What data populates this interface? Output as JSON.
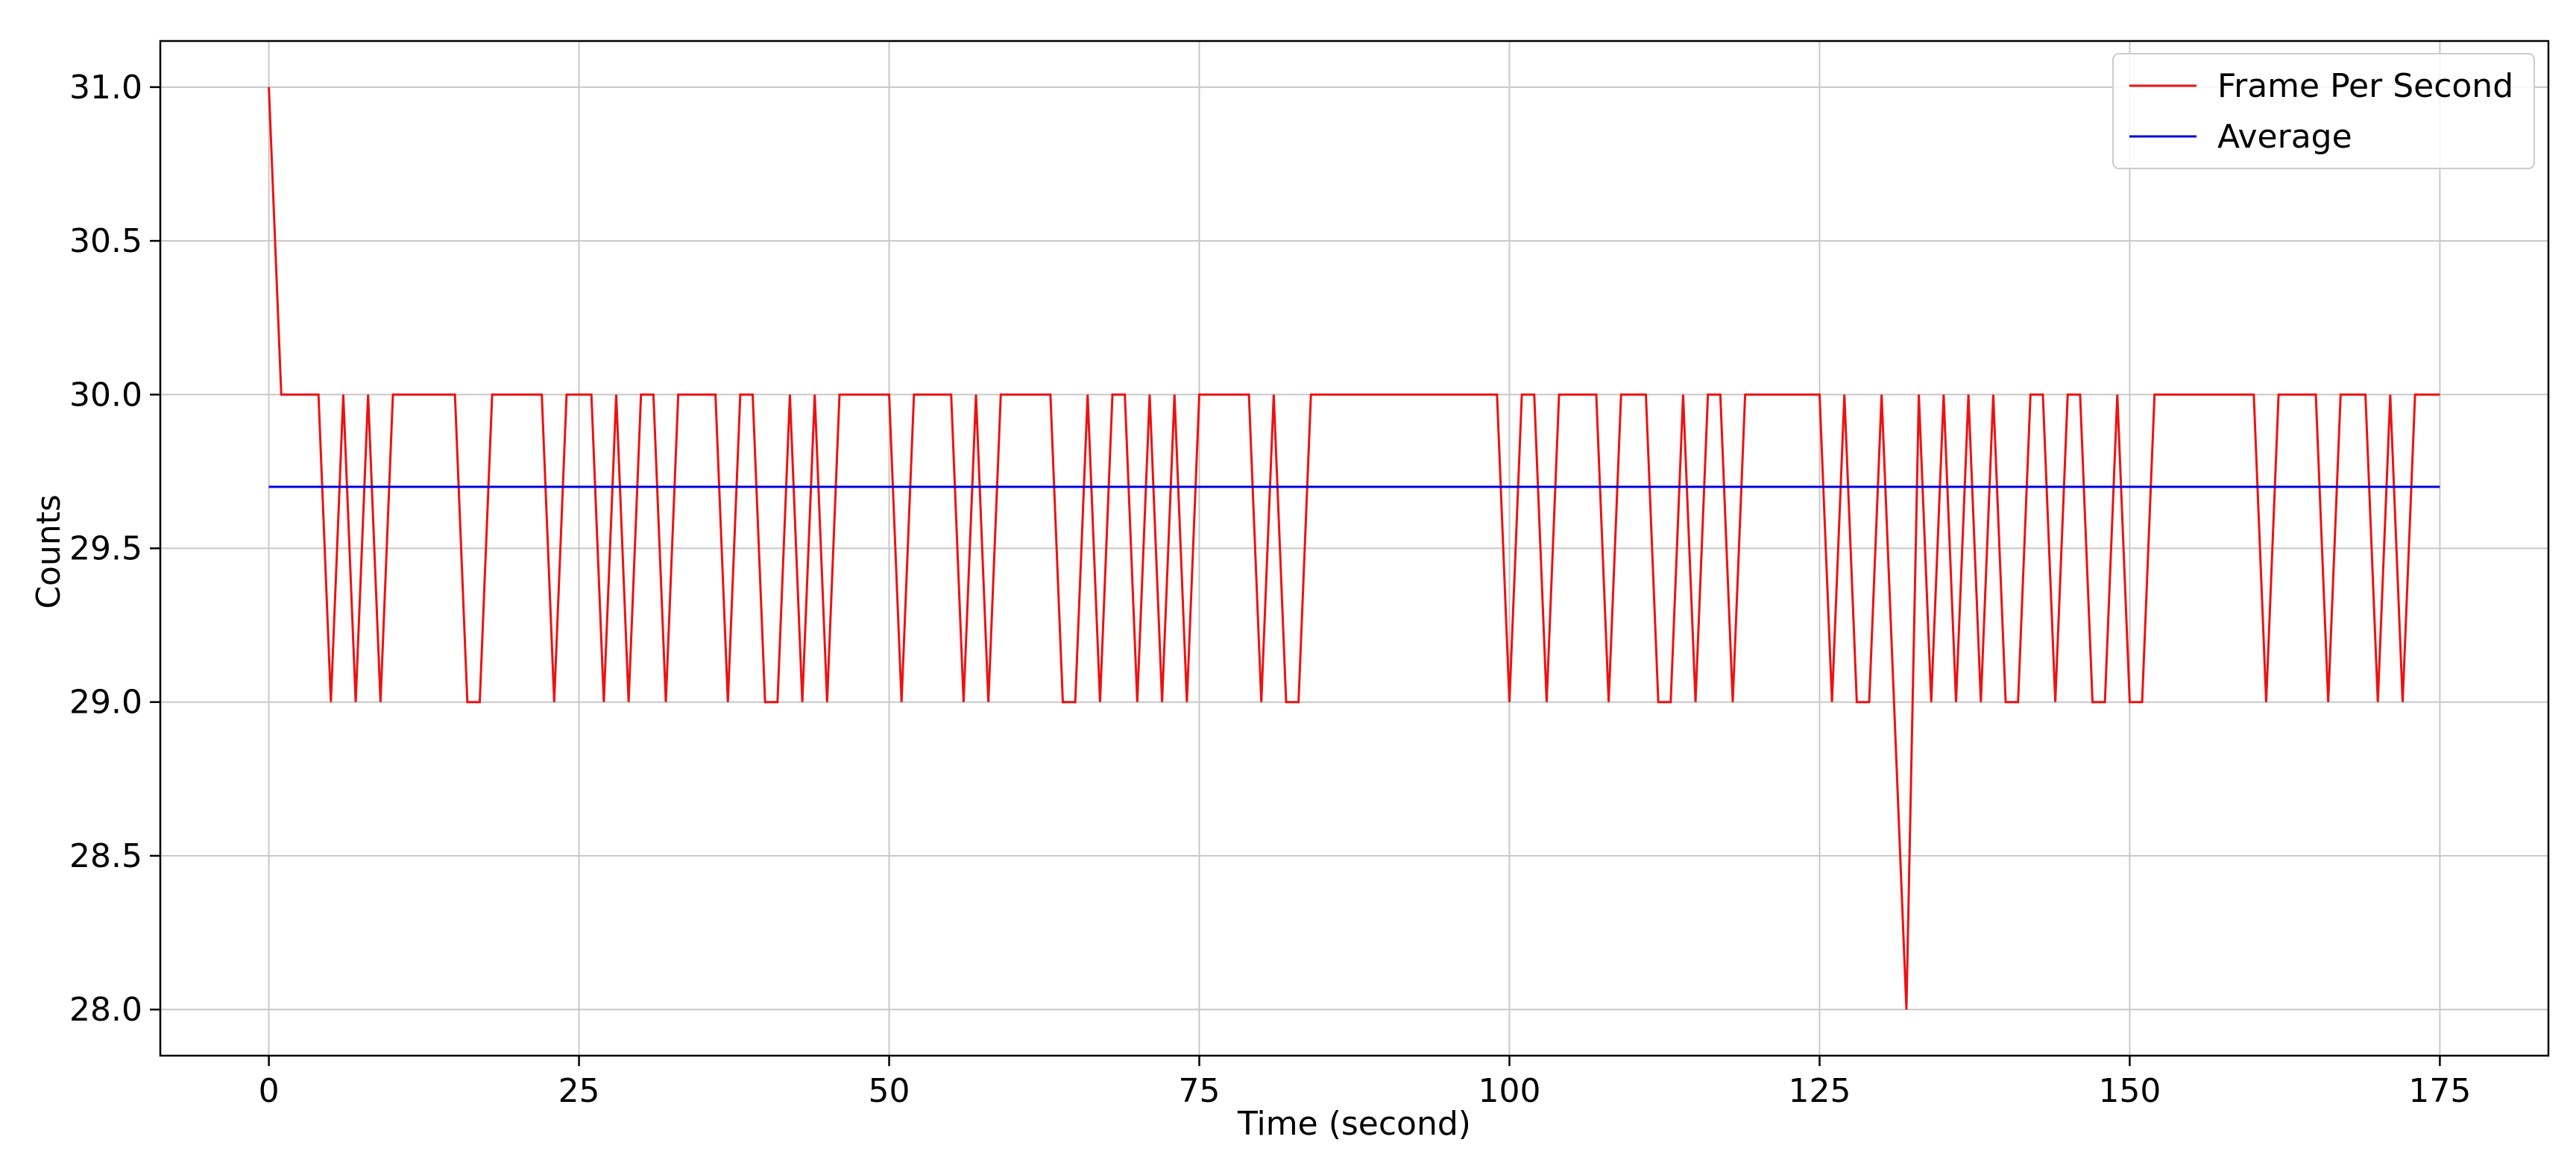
{
  "chart_data": {
    "type": "line",
    "title": "",
    "xlabel": "Time (second)",
    "ylabel": "Counts",
    "xlim": [
      -8.75,
      183.75
    ],
    "ylim": [
      27.85,
      31.15
    ],
    "xticks": [
      0,
      25,
      50,
      75,
      100,
      125,
      150,
      175
    ],
    "xtick_labels": [
      "0",
      "25",
      "50",
      "75",
      "100",
      "125",
      "150",
      "175"
    ],
    "yticks": [
      28.0,
      28.5,
      29.0,
      29.5,
      30.0,
      30.5,
      31.0
    ],
    "ytick_labels": [
      "28.0",
      "28.5",
      "29.0",
      "29.5",
      "30.0",
      "30.5",
      "31.0"
    ],
    "grid": true,
    "legend": {
      "position": "upper right",
      "entries": [
        "Frame Per Second",
        "Average"
      ]
    },
    "colors": {
      "fps": "#ee1111",
      "average": "#0000dd",
      "grid": "#c8c8c8",
      "axis": "#000000"
    },
    "series": [
      {
        "name": "Frame Per Second",
        "x": [
          0,
          1,
          2,
          3,
          4,
          5,
          6,
          7,
          8,
          9,
          10,
          11,
          12,
          13,
          14,
          15,
          16,
          17,
          18,
          19,
          20,
          21,
          22,
          23,
          24,
          25,
          26,
          27,
          28,
          29,
          30,
          31,
          32,
          33,
          34,
          35,
          36,
          37,
          38,
          39,
          40,
          41,
          42,
          43,
          44,
          45,
          46,
          47,
          48,
          49,
          50,
          51,
          52,
          53,
          54,
          55,
          56,
          57,
          58,
          59,
          60,
          61,
          62,
          63,
          64,
          65,
          66,
          67,
          68,
          69,
          70,
          71,
          72,
          73,
          74,
          75,
          76,
          77,
          78,
          79,
          80,
          81,
          82,
          83,
          84,
          85,
          86,
          87,
          88,
          89,
          90,
          91,
          92,
          93,
          94,
          95,
          96,
          97,
          98,
          99,
          100,
          101,
          102,
          103,
          104,
          105,
          106,
          107,
          108,
          109,
          110,
          111,
          112,
          113,
          114,
          115,
          116,
          117,
          118,
          119,
          120,
          121,
          122,
          123,
          124,
          125,
          126,
          127,
          128,
          129,
          130,
          131,
          132,
          133,
          134,
          135,
          136,
          137,
          138,
          139,
          140,
          141,
          142,
          143,
          144,
          145,
          146,
          147,
          148,
          149,
          150,
          151,
          152,
          153,
          154,
          155,
          156,
          157,
          158,
          159,
          160,
          161,
          162,
          163,
          164,
          165,
          166,
          167,
          168,
          169,
          170,
          171,
          172,
          173,
          174,
          175
        ],
        "y": [
          31,
          30,
          30,
          30,
          30,
          29,
          30,
          29,
          30,
          29,
          30,
          30,
          30,
          30,
          30,
          30,
          29,
          29,
          30,
          30,
          30,
          30,
          30,
          29,
          30,
          30,
          30,
          29,
          30,
          29,
          30,
          30,
          29,
          30,
          30,
          30,
          30,
          29,
          30,
          30,
          29,
          29,
          30,
          29,
          30,
          29,
          30,
          30,
          30,
          30,
          30,
          29,
          30,
          30,
          30,
          30,
          29,
          30,
          29,
          30,
          30,
          30,
          30,
          30,
          29,
          29,
          30,
          29,
          30,
          30,
          29,
          30,
          29,
          30,
          29,
          30,
          30,
          30,
          30,
          30,
          29,
          30,
          29,
          29,
          30,
          30,
          30,
          30,
          30,
          30,
          30,
          30,
          30,
          30,
          30,
          30,
          30,
          30,
          30,
          30,
          29,
          30,
          30,
          29,
          30,
          30,
          30,
          30,
          29,
          30,
          30,
          30,
          29,
          29,
          30,
          29,
          30,
          30,
          29,
          30,
          30,
          30,
          30,
          30,
          30,
          30,
          29,
          30,
          29,
          29,
          30,
          29,
          28,
          30,
          29,
          30,
          29,
          30,
          29,
          30,
          29,
          29,
          30,
          30,
          29,
          30,
          30,
          29,
          29,
          30,
          29,
          29,
          30,
          30,
          30,
          30,
          30,
          30,
          30,
          30,
          30,
          29,
          30,
          30,
          30,
          30,
          29,
          30,
          30,
          30,
          29,
          30,
          29,
          30,
          30,
          30
        ]
      },
      {
        "name": "Average",
        "x": [
          0,
          175
        ],
        "y": [
          29.7,
          29.7
        ]
      }
    ]
  }
}
